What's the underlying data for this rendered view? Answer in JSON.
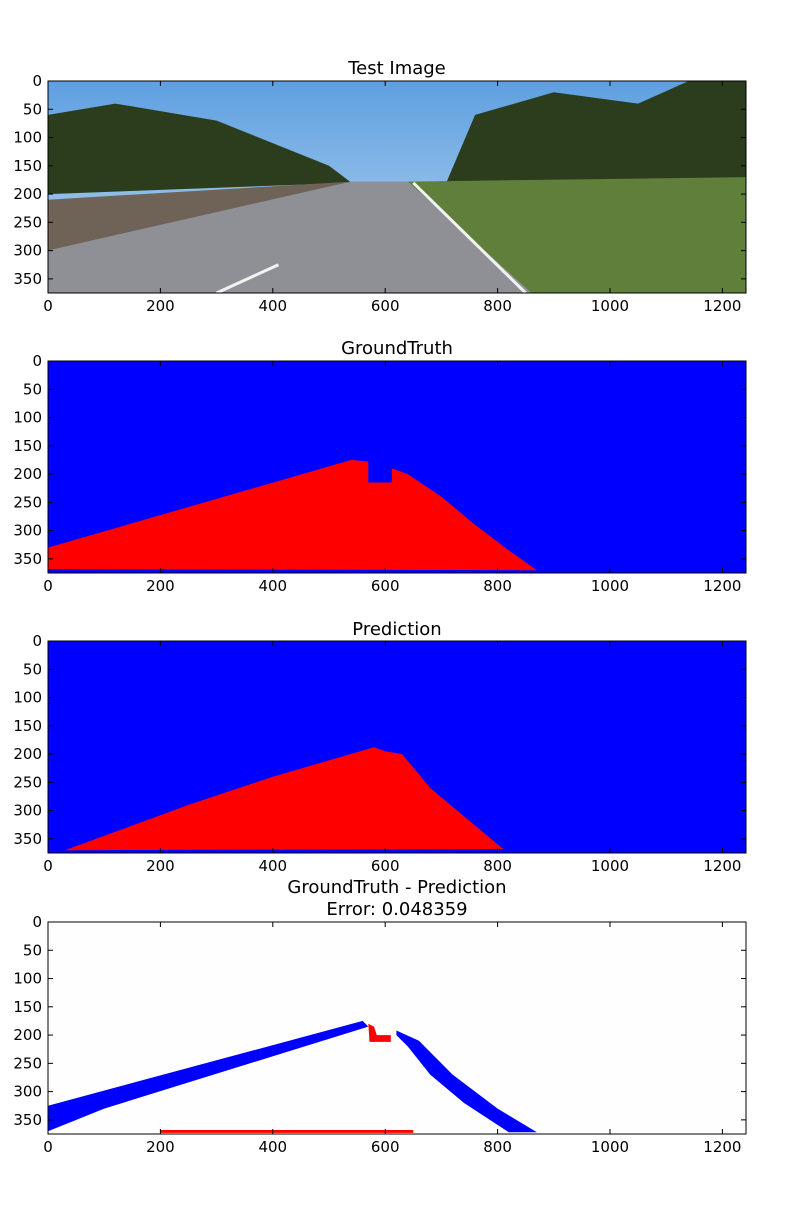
{
  "chart_data": [
    {
      "type": "heatmap",
      "title": "Test Image",
      "xlim": [
        0,
        1242
      ],
      "ylim": [
        375,
        0
      ],
      "xticks": [
        0,
        200,
        400,
        600,
        800,
        1000,
        1200
      ],
      "yticks": [
        0,
        50,
        100,
        150,
        200,
        250,
        300,
        350
      ],
      "content": "photo",
      "photo": {
        "sky": "#7cb6e8",
        "road": "#8e9096",
        "grass": "#5f7f3a",
        "trees": "#2c3d1e",
        "road_polygon": [
          [
            0,
            375
          ],
          [
            0,
            300
          ],
          [
            540,
            178
          ],
          [
            640,
            178
          ],
          [
            860,
            375
          ]
        ]
      }
    },
    {
      "type": "heatmap",
      "title": "GroundTruth",
      "xlim": [
        0,
        1242
      ],
      "ylim": [
        375,
        0
      ],
      "xticks": [
        0,
        200,
        400,
        600,
        800,
        1000,
        1200
      ],
      "yticks": [
        0,
        50,
        100,
        150,
        200,
        250,
        300,
        350
      ],
      "content": "mask",
      "background_color": "#0000ff",
      "region_color": "#ff0000",
      "road_polygon": [
        [
          0,
          368
        ],
        [
          0,
          330
        ],
        [
          540,
          175
        ],
        [
          570,
          178
        ],
        [
          570,
          215
        ],
        [
          612,
          215
        ],
        [
          612,
          190
        ],
        [
          640,
          200
        ],
        [
          700,
          240
        ],
        [
          760,
          290
        ],
        [
          820,
          335
        ],
        [
          870,
          370
        ]
      ]
    },
    {
      "type": "heatmap",
      "title": "Prediction",
      "xlim": [
        0,
        1242
      ],
      "ylim": [
        375,
        0
      ],
      "xticks": [
        0,
        200,
        400,
        600,
        800,
        1000,
        1200
      ],
      "yticks": [
        0,
        50,
        100,
        150,
        200,
        250,
        300,
        350
      ],
      "content": "mask",
      "background_color": "#0000ff",
      "region_color": "#ff0000",
      "road_polygon": [
        [
          30,
          370
        ],
        [
          250,
          290
        ],
        [
          400,
          240
        ],
        [
          580,
          188
        ],
        [
          600,
          195
        ],
        [
          630,
          200
        ],
        [
          680,
          260
        ],
        [
          740,
          310
        ],
        [
          810,
          368
        ]
      ]
    },
    {
      "type": "heatmap",
      "title": "GroundTruth - Prediction",
      "subtitle": "Error: 0.048359",
      "xlim": [
        0,
        1242
      ],
      "ylim": [
        375,
        0
      ],
      "xticks": [
        0,
        200,
        400,
        600,
        800,
        1000,
        1200
      ],
      "yticks": [
        0,
        50,
        100,
        150,
        200,
        250,
        300,
        350
      ],
      "content": "diff",
      "background_color": "#fefefe",
      "missed_color": "#0000ff",
      "false_color": "#ff0000",
      "missed_regions": [
        [
          [
            0,
            370
          ],
          [
            0,
            325
          ],
          [
            560,
            175
          ],
          [
            570,
            185
          ],
          [
            100,
            330
          ],
          [
            20,
            362
          ]
        ],
        [
          [
            620,
            192
          ],
          [
            660,
            210
          ],
          [
            720,
            270
          ],
          [
            800,
            330
          ],
          [
            870,
            372
          ],
          [
            820,
            372
          ],
          [
            740,
            320
          ],
          [
            680,
            270
          ],
          [
            640,
            220
          ],
          [
            620,
            200
          ]
        ]
      ],
      "false_regions": [
        [
          [
            570,
            180
          ],
          [
            580,
            185
          ],
          [
            585,
            200
          ],
          [
            610,
            200
          ],
          [
            610,
            212
          ],
          [
            572,
            212
          ]
        ],
        [
          [
            200,
            368
          ],
          [
            650,
            368
          ],
          [
            650,
            373
          ],
          [
            200,
            373
          ]
        ]
      ]
    }
  ]
}
